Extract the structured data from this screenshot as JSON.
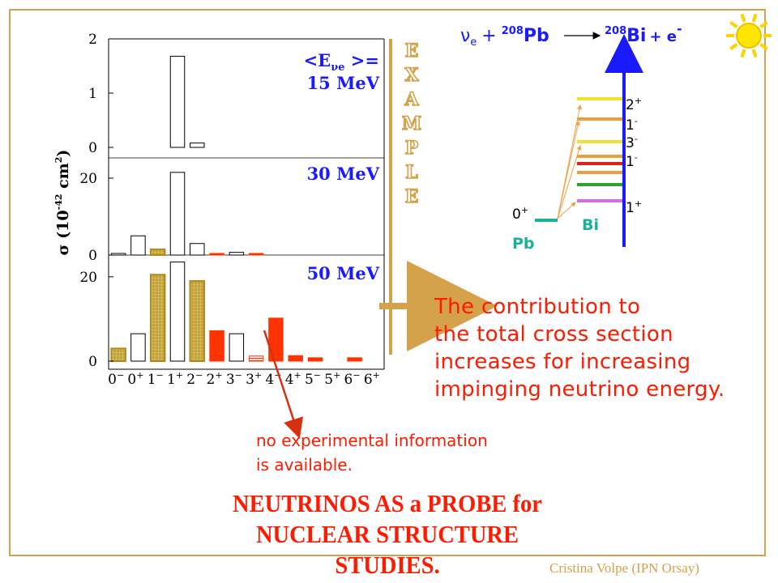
{
  "slide": {
    "title_lines": [
      "NEUTRINOS AS a PROBE for",
      "NUCLEAR STRUCTURE STUDIES."
    ],
    "author": "Cristina Volpe (IPN Orsay)",
    "contribution_lines": [
      "The contribution to",
      "the total cross section",
      "increases for increasing",
      "impinging neutrino energy."
    ],
    "no_info_lines": [
      "no experimental information",
      "is available."
    ],
    "example_text": "EXAMPLE",
    "colors": {
      "accent_red": "#ff3300",
      "frame_gold": "#d4a24a",
      "blue": "#1a1aff",
      "pb_teal": "#1ab09a"
    }
  },
  "reaction": {
    "nu": "ν",
    "nu_sub": "e",
    "plus": "+",
    "pb_mass": "208",
    "pb": "Pb",
    "bi_mass": "208",
    "bi": "Bi",
    "plus2": "+ e",
    "e_sup": "-"
  },
  "levels": {
    "pb_state": "0",
    "pb_state_sup": "+",
    "pb_label": "Pb",
    "bi_label": "Bi",
    "bi_states": [
      {
        "j": "2",
        "p": "+"
      },
      {
        "j": "1",
        "p": "-"
      },
      {
        "j": "3",
        "p": "-"
      },
      {
        "j": "1",
        "p": "-"
      },
      {
        "j": "1",
        "p": "+"
      }
    ],
    "bar_colors": [
      "#f0e030",
      "#e8a040",
      "#f0e030",
      "#e8a040",
      "#e02020",
      "#e8a040",
      "#30a030",
      "#d070e0"
    ]
  },
  "chart_data": {
    "type": "bar",
    "ylabel": "σ (10⁻⁴² cm²)",
    "ylabel_parts": {
      "sigma": "σ (10",
      "exp": "-42",
      "cm": " cm",
      "cm_exp": "2",
      "close": ")"
    },
    "categories": [
      "0-",
      "0+",
      "1-",
      "1+",
      "2-",
      "2+",
      "3-",
      "3+",
      "4-",
      "4+",
      "5-",
      "5+",
      "6-",
      "6+"
    ],
    "category_labels": [
      {
        "j": "0",
        "p": "−"
      },
      {
        "j": "0",
        "p": "+"
      },
      {
        "j": "1",
        "p": "−"
      },
      {
        "j": "1",
        "p": "+"
      },
      {
        "j": "2",
        "p": "−"
      },
      {
        "j": "2",
        "p": "+"
      },
      {
        "j": "3",
        "p": "−"
      },
      {
        "j": "3",
        "p": "+"
      },
      {
        "j": "4",
        "p": "−"
      },
      {
        "j": "4",
        "p": "+"
      },
      {
        "j": "5",
        "p": "−"
      },
      {
        "j": "5",
        "p": "+"
      },
      {
        "j": "6",
        "p": "−"
      },
      {
        "j": "6",
        "p": "+"
      }
    ],
    "panels": [
      {
        "label_prefix": "<E",
        "label_sub": "νe",
        "label_suffix": " >=",
        "label": "15 MeV",
        "ylim": [
          0,
          2
        ],
        "ticks": [
          "2",
          "1",
          "0"
        ],
        "tick_values": [
          2,
          1,
          0
        ],
        "values": [
          0,
          0,
          0,
          1.68,
          0.08,
          0,
          0,
          0,
          0,
          0,
          0,
          0,
          0,
          0
        ],
        "styles": [
          "open",
          "open",
          "open",
          "open",
          "open",
          "open",
          "open",
          "open",
          "open",
          "open",
          "open",
          "open",
          "open",
          "open"
        ]
      },
      {
        "label": "30 MeV",
        "ylim": [
          0,
          24
        ],
        "ticks": [
          "20",
          "0"
        ],
        "tick_values": [
          20,
          0
        ],
        "values": [
          0.3,
          5.0,
          1.5,
          21.5,
          3.0,
          0.3,
          0.7,
          0.3,
          0,
          0,
          0,
          0,
          0,
          0
        ],
        "styles": [
          "open",
          "open",
          "hatched",
          "open",
          "open",
          "red",
          "open",
          "red",
          "open",
          "open",
          "open",
          "open",
          "open",
          "open"
        ]
      },
      {
        "label": "50 MeV",
        "ylim": [
          0,
          24
        ],
        "ticks": [
          "20",
          "0"
        ],
        "tick_values": [
          20,
          0
        ],
        "values": [
          3.0,
          6.5,
          20.5,
          23.5,
          19.0,
          7.2,
          6.5,
          1.2,
          10.2,
          1.3,
          0.8,
          0,
          0.8,
          0
        ],
        "styles": [
          "hatched",
          "open",
          "hatched",
          "open",
          "hatched",
          "red",
          "open",
          "redhatch",
          "red",
          "red",
          "red",
          "open",
          "red",
          "open"
        ]
      }
    ]
  }
}
